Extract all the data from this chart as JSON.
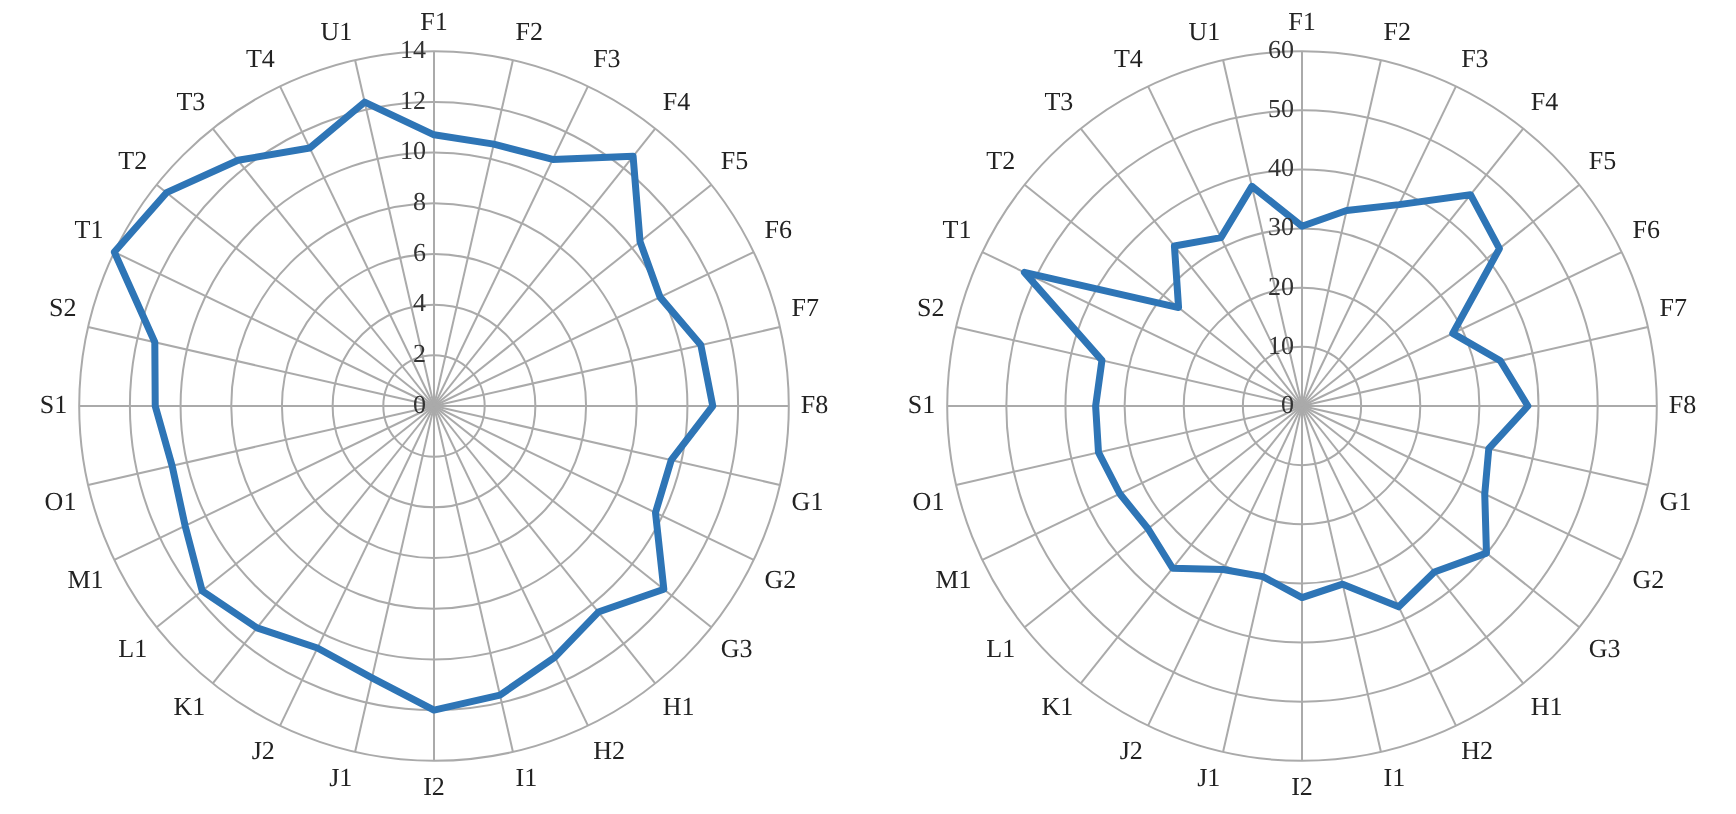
{
  "chart_data": [
    {
      "type": "radar",
      "categories": [
        "F1",
        "F2",
        "F3",
        "F4",
        "F5",
        "F6",
        "F7",
        "F8",
        "G1",
        "G2",
        "G3",
        "H1",
        "H2",
        "I1",
        "I2",
        "J1",
        "J2",
        "K1",
        "L1",
        "M1",
        "O1",
        "S1",
        "S2",
        "T1",
        "T2",
        "T3",
        "T4",
        "U1"
      ],
      "series": [
        {
          "color": "#2e75b6",
          "values": [
            10.7,
            10.6,
            10.8,
            12.6,
            10.4,
            9.9,
            10.8,
            11.0,
            9.6,
            9.7,
            11.6,
            10.4,
            11.0,
            11.7,
            12.0,
            11.0,
            10.6,
            11.2,
            11.7,
            10.9,
            10.6,
            11.0,
            11.3,
            14.0,
            13.5,
            12.4,
            11.3,
            12.3
          ]
        }
      ],
      "ylim": [
        0,
        14
      ],
      "yticks": [
        0,
        2,
        4,
        6,
        8,
        10,
        12,
        14
      ],
      "grid": true,
      "marker": "none"
    },
    {
      "type": "radar",
      "categories": [
        "F1",
        "F2",
        "F3",
        "F4",
        "F5",
        "F6",
        "F7",
        "F8",
        "G1",
        "G2",
        "G3",
        "H1",
        "H2",
        "I1",
        "I2",
        "J1",
        "J2",
        "K1",
        "L1",
        "M1",
        "O1",
        "S1",
        "S2",
        "T1",
        "T2",
        "T3",
        "T4",
        "U1"
      ],
      "series": [
        {
          "color": "#2e75b6",
          "values": [
            30.4,
            33.9,
            37.8,
            45.7,
            42.7,
            28.3,
            34.4,
            38.2,
            32.4,
            34.3,
            39.9,
            35.9,
            37.7,
            30.9,
            32.4,
            29.6,
            30.7,
            35.1,
            33.3,
            34.2,
            35.3,
            34.9,
            34.7,
            52.1,
            26.7,
            34.6,
            31.6,
            38.1
          ]
        }
      ],
      "ylim": [
        0,
        60
      ],
      "yticks": [
        0,
        10,
        20,
        30,
        40,
        50,
        60
      ],
      "grid": true,
      "marker": "none"
    }
  ]
}
